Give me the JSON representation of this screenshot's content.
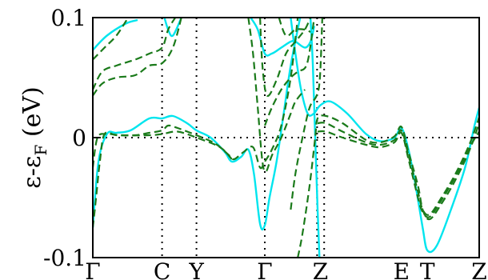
{
  "chart_data": {
    "type": "line",
    "ylabel": "ε-ε",
    "ylabel_subscript": "F",
    "ylabel_unit": " (eV)",
    "ylim": [
      -0.1,
      0.1
    ],
    "y_ticks": [
      {
        "value": 0.1,
        "label": "0.1"
      },
      {
        "value": 0,
        "label": "0"
      },
      {
        "value": -0.1,
        "label": "-0.1"
      }
    ],
    "xlim": [
      0,
      8.2
    ],
    "x_ticks": [
      {
        "value": 0,
        "label": "Γ"
      },
      {
        "value": 1.47,
        "label": "C"
      },
      {
        "value": 2.2,
        "label": "Y"
      },
      {
        "value": 3.65,
        "label": "Γ"
      },
      {
        "value": 4.83,
        "label": "Z"
      },
      {
        "value": 6.55,
        "label": "E"
      },
      {
        "value": 7.1,
        "label": "T"
      },
      {
        "value": 8.2,
        "label": "Z"
      }
    ],
    "vertical_gridlines": [
      1.47,
      2.2,
      3.65,
      4.76,
      4.91
    ],
    "fermi_level": 0,
    "grid": false,
    "colors": {
      "solid": "#00e5ee",
      "dashed": "#1a7a1a"
    },
    "series": [
      {
        "style": "solid",
        "points": [
          [
            0,
            -0.075
          ],
          [
            0.12,
            -0.02
          ],
          [
            0.3,
            0.003
          ],
          [
            0.5,
            0.004
          ],
          [
            0.8,
            0.006
          ],
          [
            1.2,
            0.016
          ],
          [
            1.47,
            0.016
          ],
          [
            1.7,
            0.018
          ],
          [
            2.0,
            0.012
          ],
          [
            2.2,
            0.006
          ],
          [
            2.5,
            0.0
          ],
          [
            2.8,
            -0.012
          ],
          [
            2.95,
            -0.02
          ],
          [
            3.15,
            -0.016
          ],
          [
            3.3,
            -0.01
          ],
          [
            3.42,
            -0.03
          ],
          [
            3.55,
            -0.072
          ],
          [
            3.65,
            -0.073
          ],
          [
            3.75,
            -0.05
          ],
          [
            3.9,
            -0.02
          ],
          [
            4.05,
            0.02
          ],
          [
            4.2,
            0.06
          ],
          [
            4.4,
            0.1
          ]
        ]
      },
      {
        "style": "solid",
        "points": [
          [
            0,
            0.073
          ],
          [
            0.3,
            0.085
          ],
          [
            0.7,
            0.095
          ],
          [
            0.95,
            0.098
          ]
        ]
      },
      {
        "style": "solid",
        "points": [
          [
            1.52,
            0.1
          ],
          [
            1.6,
            0.09
          ],
          [
            1.7,
            0.085
          ],
          [
            1.88,
            0.1
          ]
        ]
      },
      {
        "style": "solid",
        "points": [
          [
            3.35,
            0.1
          ],
          [
            3.5,
            0.09
          ],
          [
            3.65,
            0.07
          ],
          [
            3.8,
            0.07
          ],
          [
            4.0,
            0.075
          ],
          [
            4.2,
            0.08
          ],
          [
            4.3,
            0.08
          ],
          [
            4.5,
            0.075
          ],
          [
            4.62,
            0.08
          ],
          [
            4.7,
            0.093
          ]
        ]
      },
      {
        "style": "solid",
        "points": [
          [
            4.62,
            0.1
          ],
          [
            4.67,
            0.06
          ],
          [
            4.72,
            0.0
          ],
          [
            4.77,
            -0.06
          ],
          [
            4.81,
            -0.1
          ]
        ]
      },
      {
        "style": "solid",
        "points": [
          [
            4.2,
            0.1
          ],
          [
            4.3,
            0.07
          ],
          [
            4.42,
            0.04
          ],
          [
            4.56,
            0.02
          ],
          [
            4.69,
            0.02
          ],
          [
            4.83,
            0.027
          ],
          [
            5.05,
            0.03
          ],
          [
            5.4,
            0.02
          ],
          [
            5.8,
            0.003
          ],
          [
            6.1,
            -0.003
          ],
          [
            6.4,
            0.0
          ],
          [
            6.55,
            0.008
          ],
          [
            6.7,
            -0.01
          ],
          [
            6.85,
            -0.04
          ],
          [
            7.0,
            -0.075
          ],
          [
            7.1,
            -0.094
          ],
          [
            7.3,
            -0.09
          ],
          [
            7.6,
            -0.06
          ],
          [
            7.9,
            -0.025
          ],
          [
            8.1,
            0.01
          ],
          [
            8.2,
            0.025
          ]
        ]
      },
      {
        "style": "dashed",
        "points": [
          [
            0,
            -0.075
          ],
          [
            0.07,
            -0.05
          ],
          [
            0.15,
            -0.02
          ],
          [
            0.25,
            0.003
          ],
          [
            0.5,
            0.002
          ],
          [
            0.9,
            0.002
          ],
          [
            1.2,
            0.004
          ],
          [
            1.47,
            0.006
          ],
          [
            1.6,
            0.01
          ],
          [
            1.8,
            0.008
          ],
          [
            2.2,
            0.002
          ],
          [
            2.6,
            -0.005
          ],
          [
            2.9,
            -0.015
          ],
          [
            3.0,
            -0.018
          ],
          [
            3.2,
            -0.012
          ],
          [
            3.4,
            -0.008
          ],
          [
            3.55,
            -0.025
          ],
          [
            3.65,
            -0.02
          ],
          [
            3.8,
            -0.01
          ],
          [
            4.0,
            0.01
          ],
          [
            4.2,
            0.05
          ],
          [
            4.35,
            0.1
          ]
        ]
      },
      {
        "style": "dashed",
        "points": [
          [
            0,
            -0.025
          ],
          [
            0.1,
            0.0
          ],
          [
            0.3,
            0.003
          ],
          [
            0.6,
            0.002
          ],
          [
            1.2,
            0.002
          ],
          [
            1.47,
            0.003
          ],
          [
            1.8,
            0.005
          ],
          [
            2.2,
            0.0
          ],
          [
            2.7,
            -0.008
          ],
          [
            2.95,
            -0.018
          ]
        ]
      },
      {
        "style": "dashed",
        "points": [
          [
            0,
            0.035
          ],
          [
            0.2,
            0.045
          ],
          [
            0.5,
            0.05
          ],
          [
            0.9,
            0.052
          ],
          [
            1.2,
            0.06
          ],
          [
            1.47,
            0.062
          ],
          [
            1.7,
            0.075
          ],
          [
            1.88,
            0.1
          ]
        ]
      },
      {
        "style": "dashed",
        "points": [
          [
            0,
            0.04
          ],
          [
            0.2,
            0.055
          ],
          [
            0.5,
            0.06
          ],
          [
            0.9,
            0.065
          ],
          [
            1.2,
            0.07
          ],
          [
            1.47,
            0.075
          ],
          [
            1.6,
            0.09
          ],
          [
            1.75,
            0.1
          ]
        ]
      },
      {
        "style": "dashed",
        "points": [
          [
            0,
            0.065
          ],
          [
            0.25,
            0.075
          ],
          [
            0.5,
            0.085
          ],
          [
            0.75,
            0.1
          ]
        ]
      },
      {
        "style": "dashed",
        "points": [
          [
            3.3,
            0.1
          ],
          [
            3.4,
            0.07
          ],
          [
            3.5,
            0.025
          ],
          [
            3.6,
            -0.02
          ],
          [
            3.68,
            -0.028
          ],
          [
            3.8,
            -0.015
          ],
          [
            4.0,
            0.0
          ],
          [
            4.2,
            0.02
          ],
          [
            4.3,
            0.03
          ],
          [
            4.5,
            0.04
          ]
        ]
      },
      {
        "style": "dashed",
        "points": [
          [
            3.55,
            0.1
          ],
          [
            3.6,
            0.06
          ],
          [
            3.7,
            0.035
          ],
          [
            3.9,
            0.048
          ],
          [
            4.1,
            0.07
          ],
          [
            4.3,
            0.08
          ],
          [
            4.5,
            0.09
          ],
          [
            4.62,
            0.1
          ]
        ]
      },
      {
        "style": "dashed",
        "points": [
          [
            3.65,
            0.01
          ],
          [
            3.8,
            0.025
          ],
          [
            4.0,
            0.04
          ],
          [
            4.2,
            0.05
          ],
          [
            4.35,
            0.055
          ],
          [
            4.55,
            0.062
          ],
          [
            4.7,
            0.1
          ]
        ]
      },
      {
        "style": "dashed",
        "points": [
          [
            3.95,
            0.1
          ],
          [
            4.1,
            0.085
          ],
          [
            4.3,
            0.09
          ],
          [
            4.5,
            0.09
          ],
          [
            4.62,
            0.088
          ]
        ]
      },
      {
        "style": "dashed",
        "points": [
          [
            4.2,
            -0.06
          ],
          [
            4.3,
            -0.03
          ],
          [
            4.45,
            0.0
          ],
          [
            4.6,
            0.025
          ],
          [
            4.75,
            0.035
          ],
          [
            4.82,
            0.05
          ],
          [
            4.87,
            0.1
          ]
        ]
      },
      {
        "style": "dashed",
        "points": [
          [
            4.35,
            -0.1
          ],
          [
            4.45,
            -0.08
          ],
          [
            4.6,
            -0.04
          ],
          [
            4.72,
            0.0
          ],
          [
            4.77,
            0.016
          ],
          [
            4.95,
            0.018
          ],
          [
            5.3,
            0.012
          ],
          [
            5.8,
            -0.002
          ],
          [
            6.1,
            -0.004
          ],
          [
            6.4,
            0.001
          ],
          [
            6.55,
            0.009
          ],
          [
            6.7,
            -0.012
          ],
          [
            6.9,
            -0.04
          ],
          [
            7.0,
            -0.06
          ],
          [
            7.15,
            -0.068
          ],
          [
            7.4,
            -0.055
          ],
          [
            7.7,
            -0.035
          ],
          [
            8.0,
            -0.01
          ],
          [
            8.2,
            0.012
          ]
        ]
      },
      {
        "style": "dashed",
        "points": [
          [
            4.77,
            0.012
          ],
          [
            4.95,
            0.012
          ],
          [
            5.3,
            0.005
          ],
          [
            5.8,
            -0.004
          ],
          [
            6.1,
            -0.006
          ],
          [
            6.4,
            -0.002
          ],
          [
            6.55,
            0.006
          ],
          [
            6.7,
            -0.015
          ],
          [
            6.9,
            -0.045
          ],
          [
            7.0,
            -0.06
          ],
          [
            7.15,
            -0.064
          ],
          [
            7.4,
            -0.05
          ],
          [
            7.7,
            -0.03
          ],
          [
            8.0,
            -0.005
          ],
          [
            8.2,
            0.017
          ]
        ]
      },
      {
        "style": "dashed",
        "points": [
          [
            4.77,
            0.005
          ],
          [
            4.95,
            0.005
          ],
          [
            5.3,
            0.0
          ],
          [
            5.8,
            -0.006
          ],
          [
            6.1,
            -0.008
          ],
          [
            6.4,
            -0.004
          ],
          [
            6.55,
            0.004
          ],
          [
            6.7,
            -0.018
          ],
          [
            6.9,
            -0.05
          ],
          [
            7.0,
            -0.062
          ],
          [
            7.15,
            -0.066
          ],
          [
            7.4,
            -0.052
          ],
          [
            7.7,
            -0.032
          ],
          [
            8.0,
            -0.008
          ],
          [
            8.2,
            0.005
          ]
        ]
      }
    ]
  }
}
